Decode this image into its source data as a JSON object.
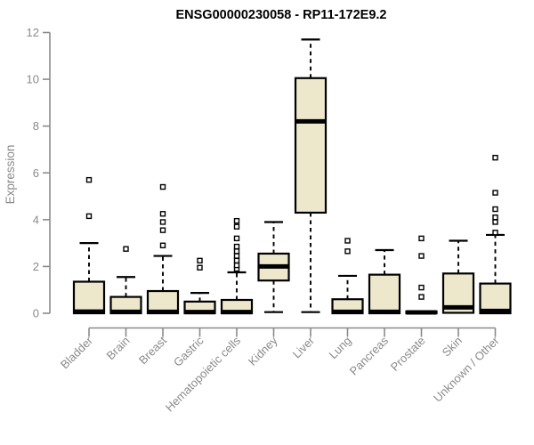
{
  "chart_data": {
    "type": "boxplot",
    "title": "ENSG00000230058 - RP11-172E9.2",
    "ylabel": "Expression",
    "xlabel": "",
    "ylim": [
      0,
      12
    ],
    "yticks": [
      0,
      2,
      4,
      6,
      8,
      10,
      12
    ],
    "grid": false,
    "legend": false,
    "categories": [
      "Bladder",
      "Brain",
      "Breast",
      "Gastric",
      "Hematopoietic cells",
      "Kidney",
      "Liver",
      "Lung",
      "Pancreas",
      "Prostate",
      "Skin",
      "Unknown / Other"
    ],
    "series": [
      {
        "category": "Bladder",
        "low": 0,
        "q1": 0,
        "median": 0.07,
        "q3": 1.35,
        "high": 3.0,
        "outliers": [
          4.15,
          5.7
        ]
      },
      {
        "category": "Brain",
        "low": 0,
        "q1": 0,
        "median": 0.06,
        "q3": 0.7,
        "high": 1.55,
        "outliers": [
          2.75
        ]
      },
      {
        "category": "Breast",
        "low": 0,
        "q1": 0,
        "median": 0.06,
        "q3": 0.95,
        "high": 2.45,
        "outliers": [
          2.9,
          3.55,
          3.9,
          4.25,
          5.4
        ]
      },
      {
        "category": "Gastric",
        "low": 0,
        "q1": 0,
        "median": 0.05,
        "q3": 0.5,
        "high": 0.87,
        "outliers": [
          1.95,
          2.25
        ]
      },
      {
        "category": "Hematopoietic cells",
        "low": 0,
        "q1": 0,
        "median": 0.05,
        "q3": 0.57,
        "high": 1.75,
        "outliers": [
          1.9,
          2.05,
          2.25,
          2.45,
          2.65,
          2.85,
          3.2,
          3.7,
          3.95
        ]
      },
      {
        "category": "Kidney",
        "low": 0.05,
        "q1": 1.4,
        "median": 2.0,
        "q3": 2.55,
        "high": 3.9,
        "outliers": []
      },
      {
        "category": "Liver",
        "low": 0.05,
        "q1": 4.3,
        "median": 8.2,
        "q3": 10.05,
        "high": 11.7,
        "outliers": []
      },
      {
        "category": "Lung",
        "low": 0,
        "q1": 0,
        "median": 0.06,
        "q3": 0.6,
        "high": 1.6,
        "outliers": [
          2.65,
          3.1
        ]
      },
      {
        "category": "Pancreas",
        "low": 0,
        "q1": 0,
        "median": 0.06,
        "q3": 1.65,
        "high": 2.7,
        "outliers": []
      },
      {
        "category": "Prostate",
        "low": 0,
        "q1": 0,
        "median": 0.04,
        "q3": 0.08,
        "high": 0.08,
        "outliers": [
          0.7,
          1.1,
          2.45,
          3.2
        ]
      },
      {
        "category": "Skin",
        "low": 0,
        "q1": 0.02,
        "median": 0.25,
        "q3": 1.7,
        "high": 3.1,
        "outliers": []
      },
      {
        "category": "Unknown / Other",
        "low": 0,
        "q1": 0,
        "median": 0.1,
        "q3": 1.27,
        "high": 3.35,
        "outliers": [
          3.45,
          3.9,
          4.1,
          4.45,
          5.15,
          6.65
        ]
      }
    ],
    "colors": {
      "box_fill": "#EDE8CB",
      "box_border": "#000000",
      "median": "#000000",
      "whisker": "#000000",
      "outlier_stroke": "#000000",
      "outlier_fill": "#FFFFFF",
      "axis_line": "#8A8A8A",
      "axis_text": "#8A8A8A",
      "title": "#000000",
      "background": "#FFFFFF"
    }
  }
}
